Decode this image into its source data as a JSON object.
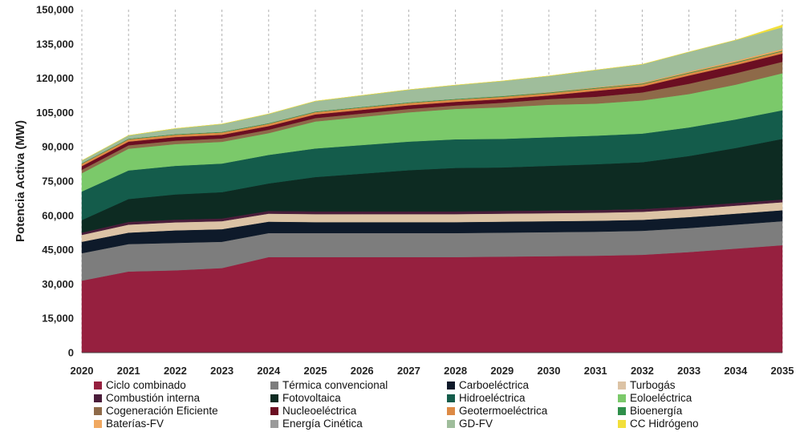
{
  "chart_data": {
    "type": "area",
    "stacked": true,
    "ylabel": "Potencia Activa (MW)",
    "xlabel": "",
    "ylim": [
      0,
      150000
    ],
    "yticks": [
      0,
      15000,
      30000,
      45000,
      60000,
      75000,
      90000,
      105000,
      120000,
      135000,
      150000
    ],
    "ytick_labels": [
      "0",
      "15,000",
      "30,000",
      "45,000",
      "60,000",
      "75,000",
      "90,000",
      "105,000",
      "120,000",
      "135,000",
      "150,000"
    ],
    "grid": "vertical",
    "legend_position": "bottom",
    "x": [
      "2020",
      "2021",
      "2022",
      "2023",
      "2024",
      "2025",
      "2026",
      "2027",
      "2028",
      "2029",
      "2030",
      "2031",
      "2032",
      "2033",
      "2034",
      "2035"
    ],
    "series": [
      {
        "name": "Ciclo combinado",
        "color": "#96203f",
        "values": [
          31500,
          35500,
          36000,
          37000,
          41800,
          41800,
          41800,
          41800,
          41800,
          42000,
          42200,
          42400,
          42800,
          44000,
          45500,
          47000
        ]
      },
      {
        "name": "Térmica convencional",
        "color": "#7d7d7d",
        "values": [
          12000,
          12000,
          12000,
          11500,
          10500,
          10500,
          10500,
          10500,
          10500,
          10500,
          10500,
          10500,
          10500,
          10500,
          10500,
          10500
        ]
      },
      {
        "name": "Carboeléctrica",
        "color": "#0e1a2a",
        "values": [
          5000,
          5000,
          5500,
          5500,
          5000,
          4800,
          4800,
          4800,
          4800,
          4800,
          4800,
          4800,
          4800,
          4800,
          4800,
          4800
        ]
      },
      {
        "name": "Turbogás",
        "color": "#dcc3a5",
        "values": [
          3000,
          3500,
          3500,
          3500,
          3500,
          3500,
          3500,
          3500,
          3500,
          3500,
          3500,
          3500,
          3500,
          3500,
          3500,
          3500
        ]
      },
      {
        "name": "Combustión interna",
        "color": "#4a1d3a",
        "values": [
          1000,
          1200,
          1200,
          1200,
          1200,
          1200,
          1200,
          1200,
          1200,
          1200,
          1200,
          1200,
          1200,
          1200,
          1200,
          1200
        ]
      },
      {
        "name": "Fotovoltaica",
        "color": "#0d2b22",
        "values": [
          5500,
          10000,
          11000,
          11500,
          12000,
          15000,
          16500,
          18000,
          19000,
          19000,
          19500,
          20000,
          20500,
          22000,
          24000,
          26500
        ]
      },
      {
        "name": "Hidroeléctrica",
        "color": "#145c4b",
        "values": [
          12500,
          12500,
          12500,
          12500,
          12500,
          12500,
          12500,
          12500,
          12500,
          12500,
          12500,
          12500,
          12500,
          12500,
          12500,
          12500
        ]
      },
      {
        "name": "Eoloeléctrica",
        "color": "#7bc96a",
        "values": [
          8000,
          9500,
          9500,
          9500,
          9500,
          11800,
          12300,
          12800,
          13300,
          13800,
          14200,
          14000,
          14500,
          14600,
          15200,
          16200
        ]
      },
      {
        "name": "Cogeneración Eficiente",
        "color": "#8e6a49",
        "values": [
          1500,
          1500,
          1500,
          1500,
          1500,
          1500,
          1500,
          1500,
          1500,
          2000,
          2500,
          3000,
          3500,
          4500,
          5000,
          5000
        ]
      },
      {
        "name": "Nucleoeléctrica",
        "color": "#6b0e22",
        "values": [
          1600,
          1600,
          1600,
          1600,
          1600,
          1600,
          1600,
          1600,
          1600,
          1600,
          1600,
          2600,
          2600,
          3600,
          3600,
          3600
        ]
      },
      {
        "name": "Geotermoeléctrica",
        "color": "#dd8a45",
        "values": [
          1000,
          1000,
          1000,
          1000,
          1000,
          1000,
          1000,
          1000,
          1000,
          1000,
          1000,
          1000,
          1000,
          1000,
          1000,
          1000
        ]
      },
      {
        "name": "Bioenergía",
        "color": "#2f8f4a",
        "values": [
          300,
          300,
          300,
          300,
          300,
          300,
          300,
          300,
          300,
          300,
          300,
          300,
          300,
          300,
          300,
          300
        ]
      },
      {
        "name": "Baterías-FV",
        "color": "#f0a860",
        "values": [
          0,
          0,
          0,
          0,
          0,
          0,
          0,
          0,
          0,
          100,
          200,
          300,
          400,
          500,
          600,
          700
        ]
      },
      {
        "name": "Energía Cinética",
        "color": "#9a9a9a",
        "values": [
          0,
          0,
          0,
          0,
          0,
          0,
          0,
          0,
          0,
          0,
          0,
          0,
          0,
          0,
          0,
          0
        ]
      },
      {
        "name": "GD-FV",
        "color": "#9fbd9b",
        "values": [
          1100,
          1400,
          2400,
          3400,
          4000,
          4500,
          5000,
          5500,
          6000,
          6500,
          7000,
          7500,
          8000,
          8500,
          9000,
          9500
        ]
      },
      {
        "name": "CC Hidrógeno",
        "color": "#f2df3a",
        "values": [
          0,
          0,
          0,
          0,
          0,
          0,
          0,
          0,
          0,
          0,
          0,
          0,
          0,
          0,
          0,
          1000
        ]
      }
    ]
  }
}
